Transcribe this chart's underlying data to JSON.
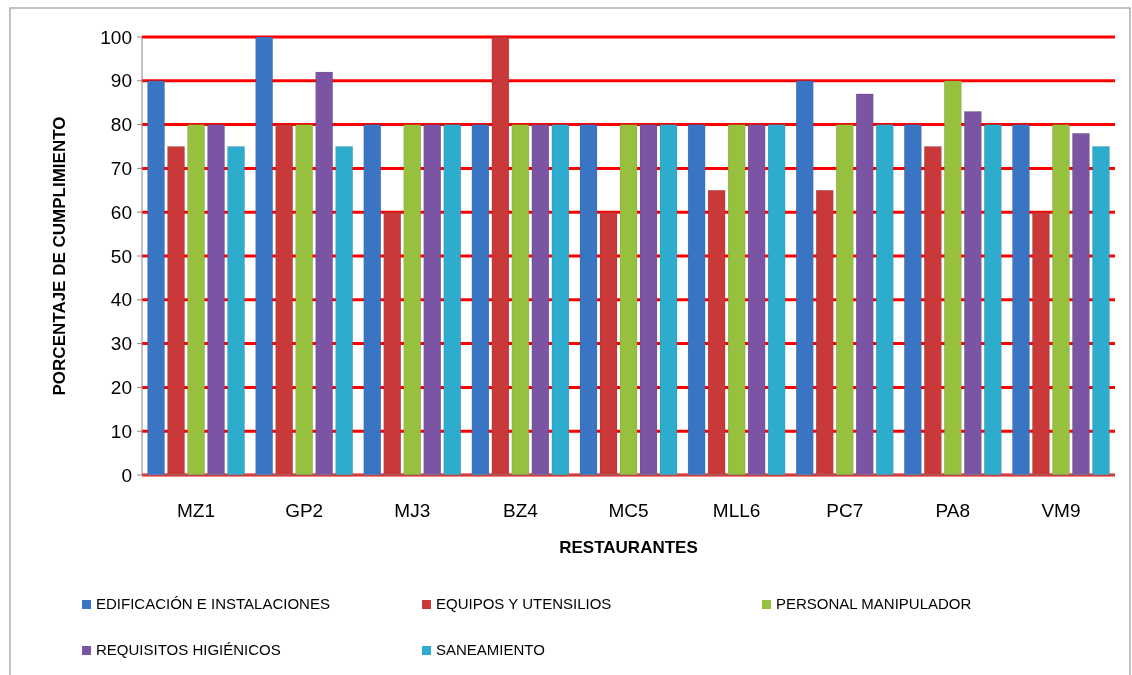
{
  "chart_data": {
    "type": "bar",
    "xlabel": "RESTAURANTES",
    "ylabel": "PORCENTAJE DE CUMPLIMIENTO",
    "categories": [
      "MZ1",
      "GP2",
      "MJ3",
      "BZ4",
      "MC5",
      "MLL6",
      "PC7",
      "PA8",
      "VM9"
    ],
    "series": [
      {
        "name": "EDIFICACIÓN E INSTALACIONES",
        "color": "#3a75c4",
        "values": [
          90,
          100,
          80,
          80,
          80,
          80,
          90,
          80,
          80
        ]
      },
      {
        "name": "EQUIPOS Y UTENSILIOS",
        "color": "#c9393a",
        "values": [
          75,
          80,
          60,
          100,
          60,
          65,
          65,
          75,
          60
        ]
      },
      {
        "name": "PERSONAL MANIPULADOR",
        "color": "#97c03f",
        "values": [
          80,
          80,
          80,
          80,
          80,
          80,
          80,
          90,
          80
        ]
      },
      {
        "name": "REQUISITOS HIGIÉNICOS",
        "color": "#7b55a3",
        "values": [
          80,
          92,
          80,
          80,
          80,
          80,
          87,
          83,
          78
        ]
      },
      {
        "name": "SANEAMIENTO",
        "color": "#2eacce",
        "values": [
          75,
          75,
          80,
          80,
          80,
          80,
          80,
          80,
          75
        ]
      }
    ],
    "ylim": [
      0,
      100
    ],
    "yticks": [
      0,
      10,
      20,
      30,
      40,
      50,
      60,
      70,
      80,
      90,
      100
    ],
    "grid": "y",
    "legend": "bottom"
  }
}
